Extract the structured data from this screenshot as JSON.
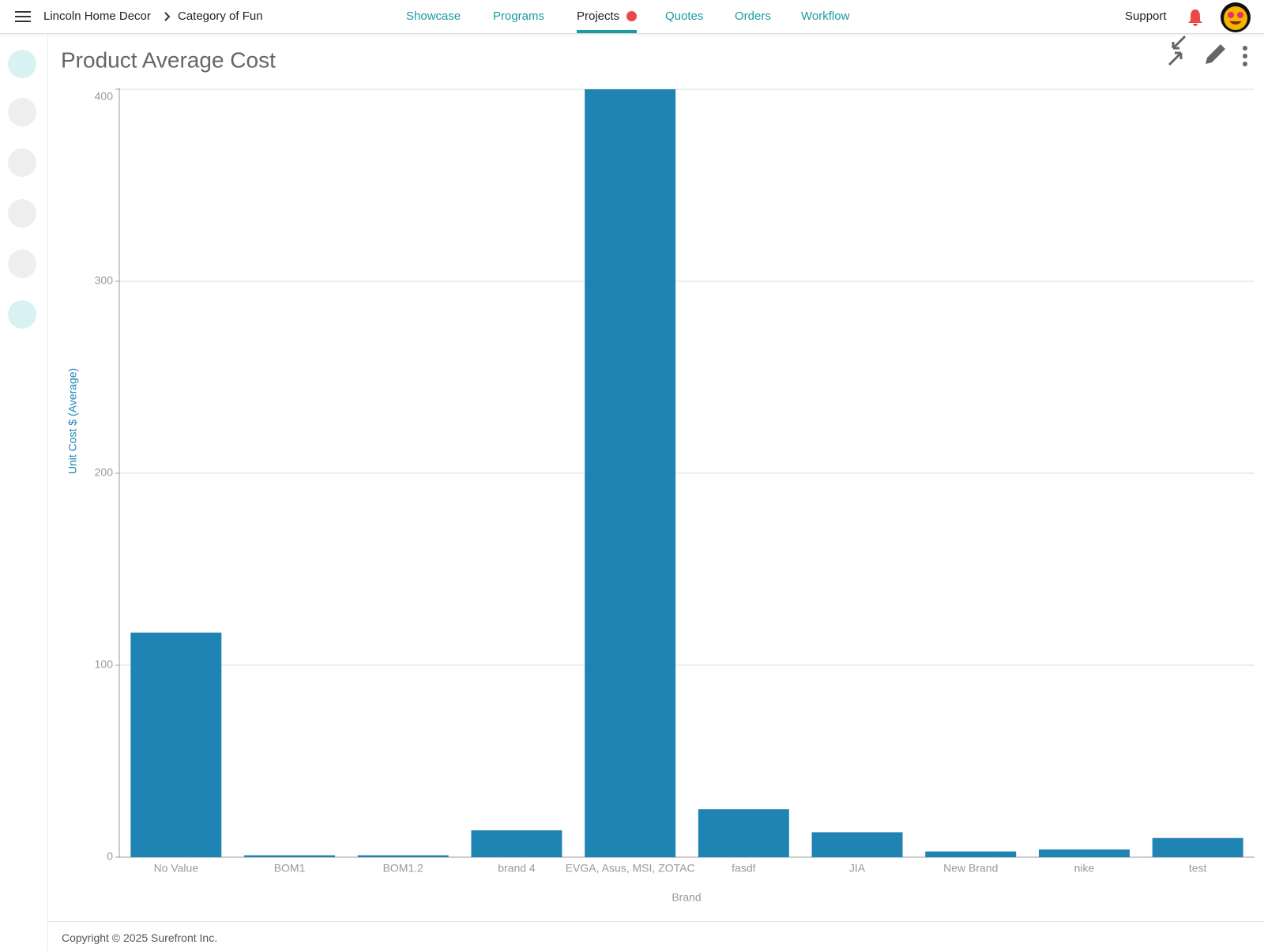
{
  "breadcrumb": [
    "Lincoln Home Decor",
    "Category of Fun"
  ],
  "nav": [
    "Showcase",
    "Programs",
    "Projects",
    "Quotes",
    "Orders",
    "Workflow"
  ],
  "support": "Support",
  "chart_data": {
    "type": "bar",
    "title": "Product Average Cost",
    "x_label": "Brand",
    "y_label": "Unit Cost $ (Average)",
    "categories": [
      "No Value",
      "BOM1",
      "BOM1.2",
      "brand 4",
      "EVGA, Asus, MSI, ZOTAC",
      "fasdf",
      "JIA",
      "New Brand",
      "nike",
      "test"
    ],
    "values": [
      117,
      1,
      1,
      14,
      400,
      25,
      13,
      3,
      4,
      10
    ],
    "color": "#1f83b4",
    "ylim": [
      0,
      400
    ],
    "yticks": [
      0,
      100,
      200,
      300,
      400
    ],
    "grid": true
  },
  "footer": {
    "copyright": "Copyright © 2025 Surefront Inc."
  }
}
